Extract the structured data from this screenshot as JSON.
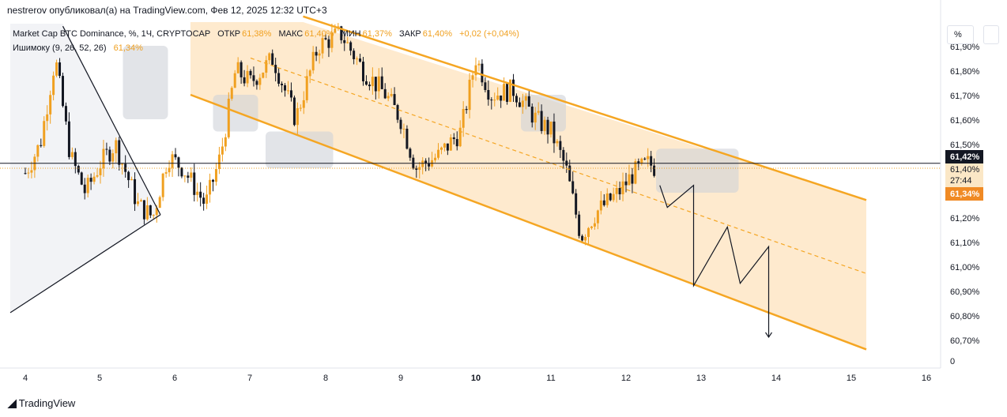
{
  "header": {
    "published_text": "nestrerov опубликовал(а) на TradingView.com, Фев 12, 2025 12:32 UTC+3"
  },
  "legend": {
    "symbol": "Market Cap BTC Dominance, %, 1Ч, CRYPTOCAP",
    "open_label": "ОТКР",
    "open_value": "61,38%",
    "high_label": "МАКС",
    "high_value": "61,40%",
    "low_label": "МИН",
    "low_value": "61,37%",
    "close_label": "ЗАКР",
    "close_value": "61,40%",
    "change_value": "+0,02 (+0,04%)",
    "indicator": "Ишимоку (9, 26, 52, 26)",
    "indicator_value": "61,34%"
  },
  "toolbar": {
    "percent_button": "%"
  },
  "price_axis": {
    "labels": [
      "61,90%",
      "61,80%",
      "61,70%",
      "61,60%",
      "61,50%",
      "61,20%",
      "61,10%",
      "61,00%",
      "60,90%",
      "60,80%",
      "60,70%",
      "0"
    ],
    "price_badge": "61,42%",
    "last_badge": "61,40%",
    "countdown": "27:44",
    "ichimoku_badge": "61,34%"
  },
  "time_axis": {
    "labels": [
      "4",
      "5",
      "6",
      "7",
      "8",
      "9",
      "10",
      "11",
      "12",
      "13",
      "14",
      "15",
      "16"
    ]
  },
  "footer": {
    "brand": "TradingView"
  },
  "colors": {
    "up_candle": "#f0a020",
    "down_candle": "#131722",
    "channel_line": "#f5a623",
    "channel_fill": "#fde3bd",
    "cloud_fill": "#cfd2d8",
    "badge_black": "#131722",
    "badge_orange": "#f08a24"
  },
  "chart_data": {
    "type": "candlestick",
    "title": "Market Cap BTC Dominance, %, 1Ч, CRYPTOCAP",
    "x_label": "",
    "y_label": "",
    "x_ticks": [
      "4",
      "5",
      "6",
      "7",
      "8",
      "9",
      "10",
      "11",
      "12",
      "13",
      "14",
      "15",
      "16"
    ],
    "y_ticks": [
      60.7,
      60.8,
      60.9,
      61.0,
      61.1,
      61.2,
      61.5,
      61.6,
      61.7,
      61.8,
      61.9
    ],
    "y_range": [
      60.62,
      61.95
    ],
    "grid": false,
    "close_path": [
      {
        "t": 4.0,
        "v": 61.38
      },
      {
        "t": 4.2,
        "v": 61.5
      },
      {
        "t": 4.4,
        "v": 61.85
      },
      {
        "t": 4.6,
        "v": 61.45
      },
      {
        "t": 4.8,
        "v": 61.3
      },
      {
        "t": 5.0,
        "v": 61.42
      },
      {
        "t": 5.2,
        "v": 61.5
      },
      {
        "t": 5.5,
        "v": 61.25
      },
      {
        "t": 5.7,
        "v": 61.2
      },
      {
        "t": 5.9,
        "v": 61.45
      },
      {
        "t": 6.1,
        "v": 61.4
      },
      {
        "t": 6.4,
        "v": 61.25
      },
      {
        "t": 6.6,
        "v": 61.45
      },
      {
        "t": 6.8,
        "v": 61.8
      },
      {
        "t": 7.0,
        "v": 61.75
      },
      {
        "t": 7.3,
        "v": 61.85
      },
      {
        "t": 7.6,
        "v": 61.6
      },
      {
        "t": 7.9,
        "v": 61.9
      },
      {
        "t": 8.2,
        "v": 61.95
      },
      {
        "t": 8.5,
        "v": 61.8
      },
      {
        "t": 8.8,
        "v": 61.7
      },
      {
        "t": 9.0,
        "v": 61.6
      },
      {
        "t": 9.2,
        "v": 61.4
      },
      {
        "t": 9.5,
        "v": 61.45
      },
      {
        "t": 9.8,
        "v": 61.55
      },
      {
        "t": 10.0,
        "v": 61.85
      },
      {
        "t": 10.2,
        "v": 61.7
      },
      {
        "t": 10.5,
        "v": 61.72
      },
      {
        "t": 10.8,
        "v": 61.6
      },
      {
        "t": 11.0,
        "v": 61.55
      },
      {
        "t": 11.2,
        "v": 61.4
      },
      {
        "t": 11.4,
        "v": 61.12
      },
      {
        "t": 11.6,
        "v": 61.22
      },
      {
        "t": 11.9,
        "v": 61.3
      },
      {
        "t": 12.1,
        "v": 61.38
      },
      {
        "t": 12.3,
        "v": 61.42
      },
      {
        "t": 12.4,
        "v": 61.4
      }
    ],
    "channel": {
      "upper": {
        "from": {
          "t": 7.7,
          "v": 62.02
        },
        "to": {
          "t": 15.2,
          "v": 61.27
        }
      },
      "lower": {
        "from": {
          "t": 6.2,
          "v": 61.7
        },
        "to": {
          "t": 15.2,
          "v": 60.66
        }
      },
      "midline": {
        "from": {
          "t": 7.0,
          "v": 61.85
        },
        "to": {
          "t": 15.2,
          "v": 60.97
        }
      }
    },
    "triangle": {
      "upper": {
        "from": {
          "t": 4.5,
          "v": 61.98
        },
        "to": {
          "t": 5.8,
          "v": 61.21
        }
      },
      "lower": {
        "from": {
          "t": 3.8,
          "v": 60.81
        },
        "to": {
          "t": 5.8,
          "v": 61.21
        }
      }
    },
    "projection_path": [
      {
        "t": 12.45,
        "v": 61.33
      },
      {
        "t": 12.55,
        "v": 61.24
      },
      {
        "t": 12.9,
        "v": 61.33
      },
      {
        "t": 12.9,
        "v": 60.92
      },
      {
        "t": 13.35,
        "v": 61.16
      },
      {
        "t": 13.52,
        "v": 60.93
      },
      {
        "t": 13.9,
        "v": 61.08
      },
      {
        "t": 13.9,
        "v": 60.71
      }
    ],
    "current_price": 61.42,
    "last_close": 61.4,
    "ichimoku_value": 61.34
  }
}
